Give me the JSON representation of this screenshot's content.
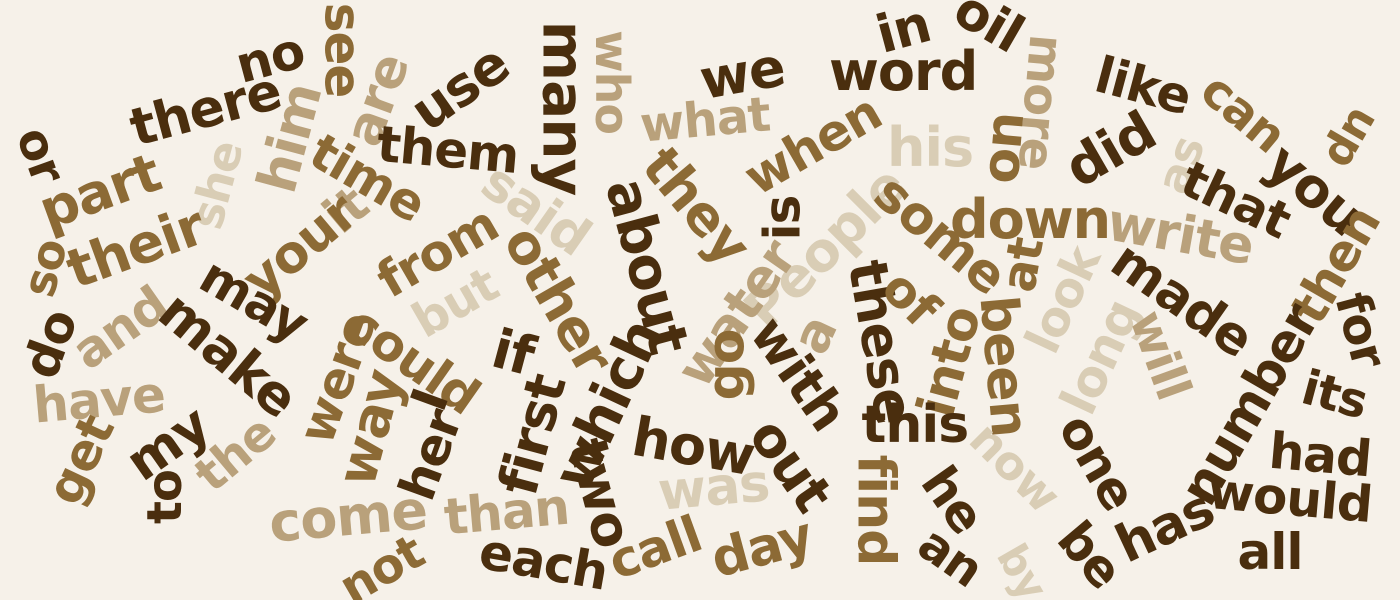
{
  "palette": {
    "background": "#f6f1e9",
    "dark": "#4a2e0e",
    "medium": "#8c6a35",
    "light": "#b9a17b",
    "pale": "#d9cdb5"
  },
  "words": [
    {
      "text": "no",
      "tone": "dark"
    },
    {
      "text": "see",
      "tone": "medium"
    },
    {
      "text": "there",
      "tone": "dark"
    },
    {
      "text": "are",
      "tone": "light"
    },
    {
      "text": "use",
      "tone": "dark"
    },
    {
      "text": "many",
      "tone": "dark"
    },
    {
      "text": "who",
      "tone": "light"
    },
    {
      "text": "we",
      "tone": "dark"
    },
    {
      "text": "in",
      "tone": "dark"
    },
    {
      "text": "oil",
      "tone": "dark"
    },
    {
      "text": "word",
      "tone": "dark"
    },
    {
      "text": "more",
      "tone": "light"
    },
    {
      "text": "like",
      "tone": "dark"
    },
    {
      "text": "can",
      "tone": "medium"
    },
    {
      "text": "up",
      "tone": "medium"
    },
    {
      "text": "or",
      "tone": "dark"
    },
    {
      "text": "part",
      "tone": "medium"
    },
    {
      "text": "him",
      "tone": "light"
    },
    {
      "text": "she",
      "tone": "pale"
    },
    {
      "text": "them",
      "tone": "dark"
    },
    {
      "text": "time",
      "tone": "medium"
    },
    {
      "text": "what",
      "tone": "light"
    },
    {
      "text": "when",
      "tone": "medium"
    },
    {
      "text": "his",
      "tone": "pale"
    },
    {
      "text": "on",
      "tone": "medium"
    },
    {
      "text": "did",
      "tone": "dark"
    },
    {
      "text": "as",
      "tone": "pale"
    },
    {
      "text": "that",
      "tone": "dark"
    },
    {
      "text": "you",
      "tone": "dark"
    },
    {
      "text": "so",
      "tone": "medium"
    },
    {
      "text": "their",
      "tone": "medium"
    },
    {
      "text": "it",
      "tone": "light"
    },
    {
      "text": "your",
      "tone": "medium"
    },
    {
      "text": "from",
      "tone": "medium"
    },
    {
      "text": "said",
      "tone": "pale"
    },
    {
      "text": "they",
      "tone": "medium"
    },
    {
      "text": "about",
      "tone": "dark"
    },
    {
      "text": "is",
      "tone": "dark"
    },
    {
      "text": "People",
      "tone": "pale"
    },
    {
      "text": "some",
      "tone": "medium"
    },
    {
      "text": "down",
      "tone": "medium"
    },
    {
      "text": "write",
      "tone": "light"
    },
    {
      "text": "then",
      "tone": "medium"
    },
    {
      "text": "do",
      "tone": "dark"
    },
    {
      "text": "and",
      "tone": "light"
    },
    {
      "text": "may",
      "tone": "dark"
    },
    {
      "text": "but",
      "tone": "pale"
    },
    {
      "text": "other",
      "tone": "medium"
    },
    {
      "text": "water",
      "tone": "light"
    },
    {
      "text": "these",
      "tone": "dark"
    },
    {
      "text": "of",
      "tone": "medium"
    },
    {
      "text": "at",
      "tone": "medium"
    },
    {
      "text": "look",
      "tone": "pale"
    },
    {
      "text": "made",
      "tone": "dark"
    },
    {
      "text": "for",
      "tone": "dark"
    },
    {
      "text": "have",
      "tone": "light"
    },
    {
      "text": "make",
      "tone": "dark"
    },
    {
      "text": "were",
      "tone": "medium"
    },
    {
      "text": "could",
      "tone": "medium"
    },
    {
      "text": "if",
      "tone": "dark"
    },
    {
      "text": "a",
      "tone": "light"
    },
    {
      "text": "into",
      "tone": "medium"
    },
    {
      "text": "long",
      "tone": "pale"
    },
    {
      "text": "will",
      "tone": "light"
    },
    {
      "text": "number",
      "tone": "dark"
    },
    {
      "text": "its",
      "tone": "dark"
    },
    {
      "text": "get",
      "tone": "medium"
    },
    {
      "text": "my",
      "tone": "dark"
    },
    {
      "text": "to",
      "tone": "dark"
    },
    {
      "text": "the",
      "tone": "light"
    },
    {
      "text": "way",
      "tone": "medium"
    },
    {
      "text": "I",
      "tone": "dark"
    },
    {
      "text": "her",
      "tone": "dark"
    },
    {
      "text": "first",
      "tone": "dark"
    },
    {
      "text": "which",
      "tone": "dark"
    },
    {
      "text": "go",
      "tone": "medium"
    },
    {
      "text": "with",
      "tone": "dark"
    },
    {
      "text": "how",
      "tone": "dark"
    },
    {
      "text": "out",
      "tone": "dark"
    },
    {
      "text": "this",
      "tone": "dark"
    },
    {
      "text": "been",
      "tone": "medium"
    },
    {
      "text": "now",
      "tone": "pale"
    },
    {
      "text": "one",
      "tone": "dark"
    },
    {
      "text": "had",
      "tone": "dark"
    },
    {
      "text": "come",
      "tone": "light"
    },
    {
      "text": "than",
      "tone": "light"
    },
    {
      "text": "two",
      "tone": "dark"
    },
    {
      "text": "was",
      "tone": "pale"
    },
    {
      "text": "find",
      "tone": "medium"
    },
    {
      "text": "he",
      "tone": "dark"
    },
    {
      "text": "would",
      "tone": "dark"
    },
    {
      "text": "not",
      "tone": "medium"
    },
    {
      "text": "each",
      "tone": "dark"
    },
    {
      "text": "call",
      "tone": "medium"
    },
    {
      "text": "day",
      "tone": "medium"
    },
    {
      "text": "an",
      "tone": "dark"
    },
    {
      "text": "by",
      "tone": "pale"
    },
    {
      "text": "be",
      "tone": "dark"
    },
    {
      "text": "has",
      "tone": "dark"
    },
    {
      "text": "all",
      "tone": "dark"
    }
  ]
}
